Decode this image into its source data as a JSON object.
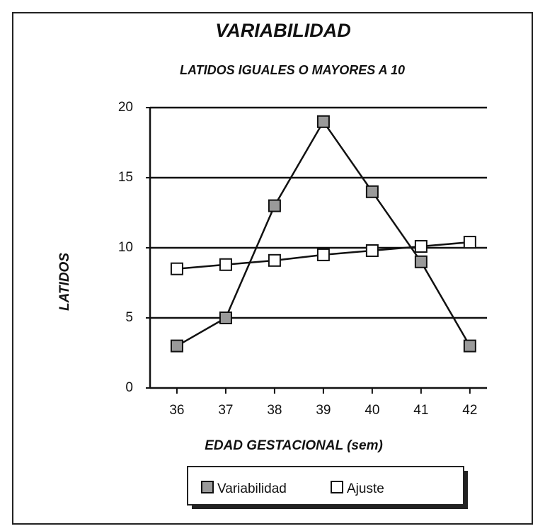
{
  "chart_data": {
    "type": "line",
    "title": "VARIABILIDAD",
    "subtitle": "LATIDOS IGUALES O MAYORES A 10",
    "x_label": "EDAD GESTACIONAL (sem)",
    "y_label": "LATIDOS",
    "x": [
      36,
      37,
      38,
      39,
      40,
      41,
      42
    ],
    "series": [
      {
        "name": "Variabilidad",
        "color": "#9a9a9a",
        "values": [
          3,
          5,
          13,
          19,
          14,
          9,
          3
        ]
      },
      {
        "name": "Ajuste",
        "color": "#ffffff",
        "values": [
          8.5,
          8.8,
          9.1,
          9.5,
          9.8,
          10.1,
          10.4
        ]
      }
    ],
    "xlim": [
      35.45,
      42.35
    ],
    "xticks": [
      36,
      37,
      38,
      39,
      40,
      41,
      42
    ],
    "ylim": [
      0,
      20
    ],
    "yticks": [
      0,
      5,
      10,
      15,
      20
    ],
    "grid": true,
    "legend": "bottom"
  }
}
